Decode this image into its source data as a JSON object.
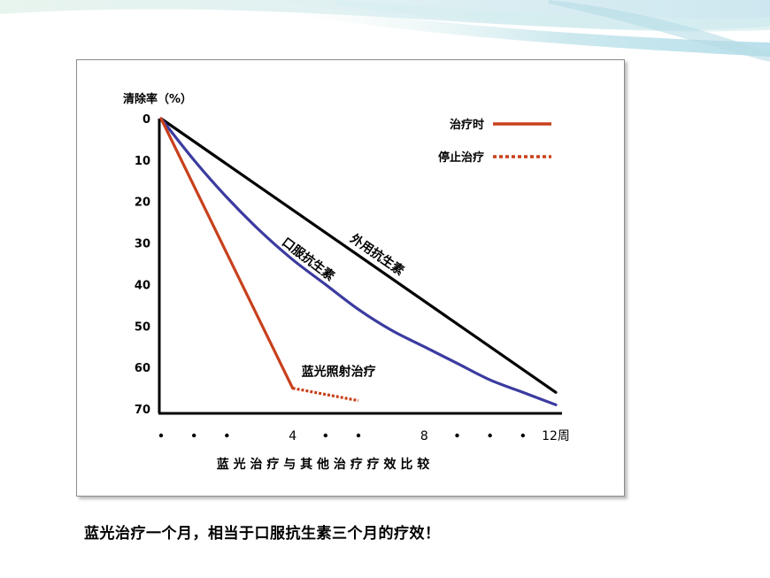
{
  "chart_data": {
    "type": "line",
    "ylabel": "清除率（%）",
    "y_ticks": [
      "0",
      "10",
      "20",
      "30",
      "40",
      "50",
      "60",
      "70"
    ],
    "ylim": [
      0,
      70
    ],
    "y_inverted": true,
    "x_ticks": [
      {
        "x": 4,
        "label": "4"
      },
      {
        "x": 8,
        "label": "8"
      },
      {
        "x": 12,
        "label": "12周"
      }
    ],
    "x_dots": [
      0,
      1,
      2,
      5,
      6,
      9,
      10,
      11
    ],
    "xlim": [
      0,
      12
    ],
    "xlabel": "蓝 光 治 疗 与 其 他 治 疗 疗 效 比 较",
    "legend": {
      "position": "top-right",
      "items": [
        {
          "label": "治疗时",
          "color": "#c8401c",
          "style": "solid"
        },
        {
          "label": "停止治疗",
          "color": "#c8401c",
          "style": "dotted"
        }
      ]
    },
    "series": [
      {
        "name": "外用抗生素",
        "color": "#000000",
        "style": "solid",
        "points": [
          [
            0,
            0
          ],
          [
            12,
            66
          ]
        ]
      },
      {
        "name": "口服抗生素",
        "color": "#3b3ba0",
        "style": "solid",
        "points": [
          [
            0,
            0
          ],
          [
            1,
            10
          ],
          [
            2,
            19
          ],
          [
            3,
            27
          ],
          [
            4,
            34
          ],
          [
            5,
            40
          ],
          [
            6,
            46
          ],
          [
            7,
            51
          ],
          [
            8,
            55
          ],
          [
            9,
            59
          ],
          [
            10,
            63
          ],
          [
            11,
            66
          ],
          [
            12,
            69
          ]
        ]
      },
      {
        "name": "蓝光照射治疗",
        "color": "#c8401c",
        "style": "solid",
        "points": [
          [
            0,
            0
          ],
          [
            4,
            65
          ]
        ]
      },
      {
        "name": "",
        "color": "#c8401c",
        "style": "dotted",
        "points": [
          [
            4,
            65
          ],
          [
            6,
            68
          ]
        ]
      }
    ],
    "series_labels": [
      {
        "text": "外用抗生素",
        "series": 0
      },
      {
        "text": "口服抗生素",
        "series": 1
      },
      {
        "text": "蓝光照射治疗",
        "series": 2
      }
    ]
  },
  "caption": "蓝光治疗一个月，相当于口服抗生素三个月的疗效！",
  "colors": {
    "red": "#c8401c",
    "blue": "#3b3ba0",
    "black": "#000000"
  }
}
